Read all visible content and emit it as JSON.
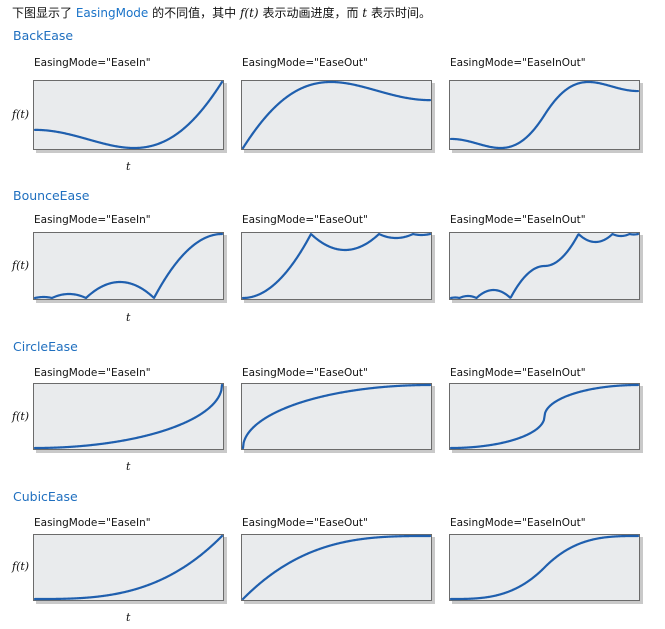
{
  "intro": {
    "before": "下图显示了",
    "link": "EasingMode",
    "middle": "的不同值，其中",
    "ft": "f(t)",
    "middle2": "表示动画进度，而",
    "t": "t",
    "after": "表示时间。"
  },
  "axis": {
    "f_label": "f(t)",
    "t_label": "t"
  },
  "colors": {
    "curve": "#1f5fae",
    "box_fill": "#e9ebed",
    "title": "#1f6fbf"
  },
  "sections": [
    {
      "title": "BackEase",
      "function": "back",
      "panels": [
        {
          "label": "EasingMode=\"EaseIn\"",
          "mode": "in"
        },
        {
          "label": "EasingMode=\"EaseOut\"",
          "mode": "out"
        },
        {
          "label": "EasingMode=\"EaseInOut\"",
          "mode": "inout"
        }
      ]
    },
    {
      "title": "BounceEase",
      "function": "bounce",
      "panels": [
        {
          "label": "EasingMode=\"EaseIn\"",
          "mode": "in"
        },
        {
          "label": "EasingMode=\"EaseOut\"",
          "mode": "out"
        },
        {
          "label": "EasingMode=\"EaseInOut\"",
          "mode": "inout"
        }
      ]
    },
    {
      "title": "CircleEase",
      "function": "circle",
      "panels": [
        {
          "label": "EasingMode=\"EaseIn\"",
          "mode": "in"
        },
        {
          "label": "EasingMode=\"EaseOut\"",
          "mode": "out"
        },
        {
          "label": "EasingMode=\"EaseInOut\"",
          "mode": "inout"
        }
      ]
    },
    {
      "title": "CubicEase",
      "function": "cubic",
      "panels": [
        {
          "label": "EasingMode=\"EaseIn\"",
          "mode": "in"
        },
        {
          "label": "EasingMode=\"EaseOut\"",
          "mode": "out"
        },
        {
          "label": "EasingMode=\"EaseInOut\"",
          "mode": "inout"
        }
      ]
    }
  ]
}
